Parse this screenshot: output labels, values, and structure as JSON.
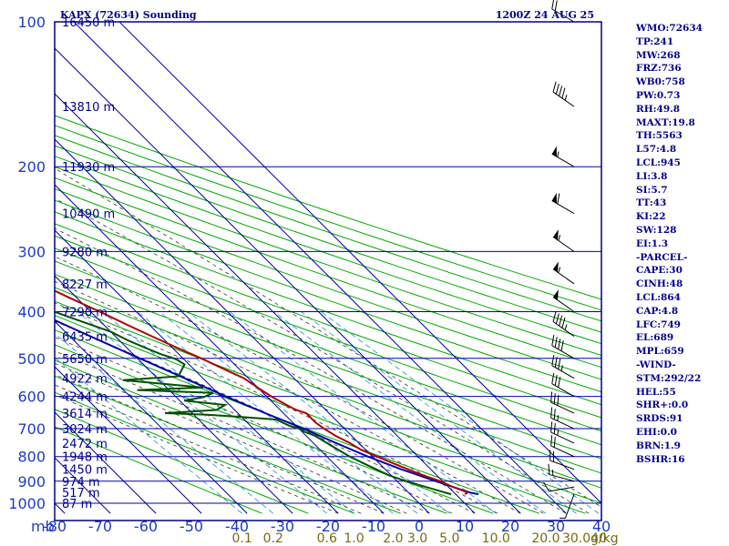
{
  "header": {
    "title": "KAPX (72634) Sounding",
    "time": "1200Z 24 AUG 25"
  },
  "indices": [
    "WMO:72634",
    "TP:241",
    "MW:268",
    "FRZ:736",
    "WB0:758",
    "PW:0.73",
    "RH:49.8",
    "MAXT:19.8",
    "TH:5563",
    "L57:4.8",
    "LCL:945",
    "LI:3.8",
    "SI:5.7",
    "TT:43",
    "KI:22",
    "SW:128",
    "EI:1.3",
    "-PARCEL-",
    "CAPE:30",
    "CINH:48",
    "LCL:864",
    "CAP:4.8",
    "LFC:749",
    "EL:689",
    "MPL:659",
    "-WIND-",
    "STM:292/22",
    "HEL:55",
    "SHR+:0.0",
    "SRDS:91",
    "EHI:0.0",
    "BRN:1.9",
    "BSHR:16"
  ],
  "colors": {
    "frame": "#00008b",
    "axis_text": "#1e3cc8",
    "pressure_grid": "#0000aa",
    "temp_grid": "#0000aa",
    "dry_adiabat": "#00aa00",
    "moist_adiabat": "#333333",
    "mixing_ratio": "#3399dd",
    "mixing_label": "#7a6a10",
    "temperature": "#b00000",
    "dewpoint": "#005000",
    "parcel": "#0000b0",
    "barbs": "#000000"
  },
  "chart_data": {
    "type": "skew-t",
    "pressure_axis": {
      "unit_label": "mb",
      "ticks": [
        100,
        200,
        300,
        400,
        500,
        600,
        700,
        800,
        900,
        1000
      ],
      "ylim": [
        1050,
        100
      ],
      "scale": "log"
    },
    "temperature_axis": {
      "ticks": [
        -80,
        -70,
        -60,
        -50,
        -40,
        -30,
        -20,
        -10,
        0,
        10,
        20,
        30,
        40
      ],
      "labels": [
        "-80",
        "-70",
        "-60",
        "-50",
        "-40",
        "-30",
        "-20",
        "-10",
        "0",
        "10",
        "20",
        "30",
        "40"
      ]
    },
    "height_labels": [
      {
        "p": 100,
        "label": "16450 m"
      },
      {
        "p": 150,
        "label": "13810 m"
      },
      {
        "p": 200,
        "label": "11930 m"
      },
      {
        "p": 250,
        "label": "10490 m"
      },
      {
        "p": 300,
        "label": "9280 m"
      },
      {
        "p": 350,
        "label": "8227 m"
      },
      {
        "p": 400,
        "label": "7290 m"
      },
      {
        "p": 450,
        "label": "6435 m"
      },
      {
        "p": 500,
        "label": "5650 m"
      },
      {
        "p": 550,
        "label": "4922 m"
      },
      {
        "p": 600,
        "label": "4244 m"
      },
      {
        "p": 650,
        "label": "3614 m"
      },
      {
        "p": 700,
        "label": "3024 m"
      },
      {
        "p": 750,
        "label": "2472 m"
      },
      {
        "p": 800,
        "label": "1948 m"
      },
      {
        "p": 850,
        "label": "1450 m"
      },
      {
        "p": 900,
        "label": "974 m"
      },
      {
        "p": 950,
        "label": "517 m"
      },
      {
        "p": 1000,
        "label": "87 m"
      }
    ],
    "mixing_ratio_labels": [
      {
        "w": 0.1,
        "label": "0.1"
      },
      {
        "w": 0.2,
        "label": "0.2"
      },
      {
        "w": 0.6,
        "label": "0.6"
      },
      {
        "w": 1.0,
        "label": "1.0"
      },
      {
        "w": 2.0,
        "label": "2.0"
      },
      {
        "w": 3.0,
        "label": "3.0"
      },
      {
        "w": 5.0,
        "label": "5.0"
      },
      {
        "w": 10.0,
        "label": "10.0"
      },
      {
        "w": 20.0,
        "label": "20.0"
      },
      {
        "w": 30.0,
        "label": "30.0"
      },
      {
        "w": 40.0,
        "label": "40"
      }
    ],
    "mixing_ratio_unit": "g/kg",
    "temperature": [
      [
        958,
        12
      ],
      [
        950,
        13
      ],
      [
        925,
        11
      ],
      [
        900,
        9.5
      ],
      [
        875,
        7
      ],
      [
        850,
        5
      ],
      [
        825,
        3
      ],
      [
        800,
        1
      ],
      [
        775,
        -1
      ],
      [
        750,
        -2
      ],
      [
        725,
        -3.5
      ],
      [
        700,
        -4.5
      ],
      [
        680,
        -5
      ],
      [
        660,
        -5
      ],
      [
        650,
        -5
      ],
      [
        640,
        -6.5
      ],
      [
        625,
        -7.5
      ],
      [
        600,
        -9
      ],
      [
        575,
        -10
      ],
      [
        550,
        -11
      ],
      [
        525,
        -13.5
      ],
      [
        500,
        -16
      ],
      [
        475,
        -19
      ],
      [
        450,
        -22
      ],
      [
        425,
        -25
      ],
      [
        400,
        -28
      ],
      [
        375,
        -31.5
      ],
      [
        350,
        -35
      ],
      [
        325,
        -38
      ],
      [
        300,
        -41
      ],
      [
        275,
        -45
      ],
      [
        250,
        -48.5
      ],
      [
        235,
        -51
      ],
      [
        220,
        -50
      ],
      [
        205,
        -48
      ],
      [
        200,
        -48
      ],
      [
        180,
        -49
      ],
      [
        160,
        -50
      ],
      [
        140,
        -51.5
      ],
      [
        120,
        -52
      ],
      [
        100,
        -53
      ]
    ],
    "dewpoint": [
      [
        958,
        9
      ],
      [
        950,
        8
      ],
      [
        925,
        5
      ],
      [
        900,
        2
      ],
      [
        875,
        -0.5
      ],
      [
        850,
        -2
      ],
      [
        825,
        -3.5
      ],
      [
        800,
        -5
      ],
      [
        775,
        -6
      ],
      [
        750,
        -7
      ],
      [
        725,
        -8
      ],
      [
        710,
        -9.5
      ],
      [
        700,
        -10
      ],
      [
        690,
        -11.5
      ],
      [
        670,
        -13
      ],
      [
        660,
        -22
      ],
      [
        655,
        -27
      ],
      [
        650,
        -36
      ],
      [
        640,
        -24
      ],
      [
        625,
        -21
      ],
      [
        612,
        -29
      ],
      [
        602,
        -24
      ],
      [
        590,
        -21
      ],
      [
        582,
        -37
      ],
      [
        575,
        -22
      ],
      [
        565,
        -30
      ],
      [
        555,
        -38
      ],
      [
        545,
        -25
      ],
      [
        530,
        -23
      ],
      [
        515,
        -21
      ],
      [
        505,
        -21.5
      ],
      [
        500,
        -22
      ],
      [
        490,
        -24
      ],
      [
        475,
        -26
      ],
      [
        460,
        -28
      ],
      [
        440,
        -30
      ],
      [
        420,
        -34
      ],
      [
        400,
        -38
      ],
      [
        380,
        -39
      ],
      [
        360,
        -40
      ],
      [
        350,
        -45
      ],
      [
        340,
        -50
      ],
      [
        325,
        -53
      ],
      [
        300,
        -56
      ],
      [
        275,
        -58
      ],
      [
        250,
        -61
      ],
      [
        235,
        -61.5
      ],
      [
        225,
        -63
      ],
      [
        200,
        -63.5
      ],
      [
        180,
        -66
      ],
      [
        160,
        -70
      ],
      [
        140,
        -76
      ],
      [
        120,
        -80
      ],
      [
        100,
        -82
      ]
    ],
    "parcel": [
      [
        958,
        15
      ],
      [
        950,
        13.5
      ],
      [
        925,
        11
      ],
      [
        900,
        8.5
      ],
      [
        864,
        5
      ],
      [
        850,
        3.5
      ],
      [
        800,
        -1
      ],
      [
        750,
        -5
      ],
      [
        700,
        -9
      ],
      [
        650,
        -14
      ],
      [
        600,
        -19
      ],
      [
        550,
        -24
      ],
      [
        500,
        -29.5
      ],
      [
        450,
        -35.5
      ],
      [
        400,
        -42
      ],
      [
        350,
        -49.5
      ],
      [
        300,
        -58
      ],
      [
        250,
        -67
      ],
      [
        200,
        -77
      ],
      [
        150,
        -88
      ],
      [
        100,
        -100
      ]
    ],
    "wind": [
      {
        "p": 958,
        "dir": 200,
        "spd": 5
      },
      {
        "p": 925,
        "dir": 260,
        "spd": 10
      },
      {
        "p": 900,
        "dir": 285,
        "spd": 15
      },
      {
        "p": 850,
        "dir": 290,
        "spd": 20
      },
      {
        "p": 800,
        "dir": 295,
        "spd": 20
      },
      {
        "p": 750,
        "dir": 295,
        "spd": 25
      },
      {
        "p": 700,
        "dir": 295,
        "spd": 25
      },
      {
        "p": 650,
        "dir": 295,
        "spd": 30
      },
      {
        "p": 600,
        "dir": 300,
        "spd": 30
      },
      {
        "p": 550,
        "dir": 300,
        "spd": 35
      },
      {
        "p": 500,
        "dir": 300,
        "spd": 40
      },
      {
        "p": 450,
        "dir": 305,
        "spd": 45
      },
      {
        "p": 400,
        "dir": 305,
        "spd": 50
      },
      {
        "p": 350,
        "dir": 305,
        "spd": 55
      },
      {
        "p": 300,
        "dir": 305,
        "spd": 55
      },
      {
        "p": 250,
        "dir": 300,
        "spd": 60
      },
      {
        "p": 200,
        "dir": 300,
        "spd": 55
      },
      {
        "p": 150,
        "dir": 305,
        "spd": 45
      },
      {
        "p": 100,
        "dir": 300,
        "spd": 20
      }
    ]
  }
}
